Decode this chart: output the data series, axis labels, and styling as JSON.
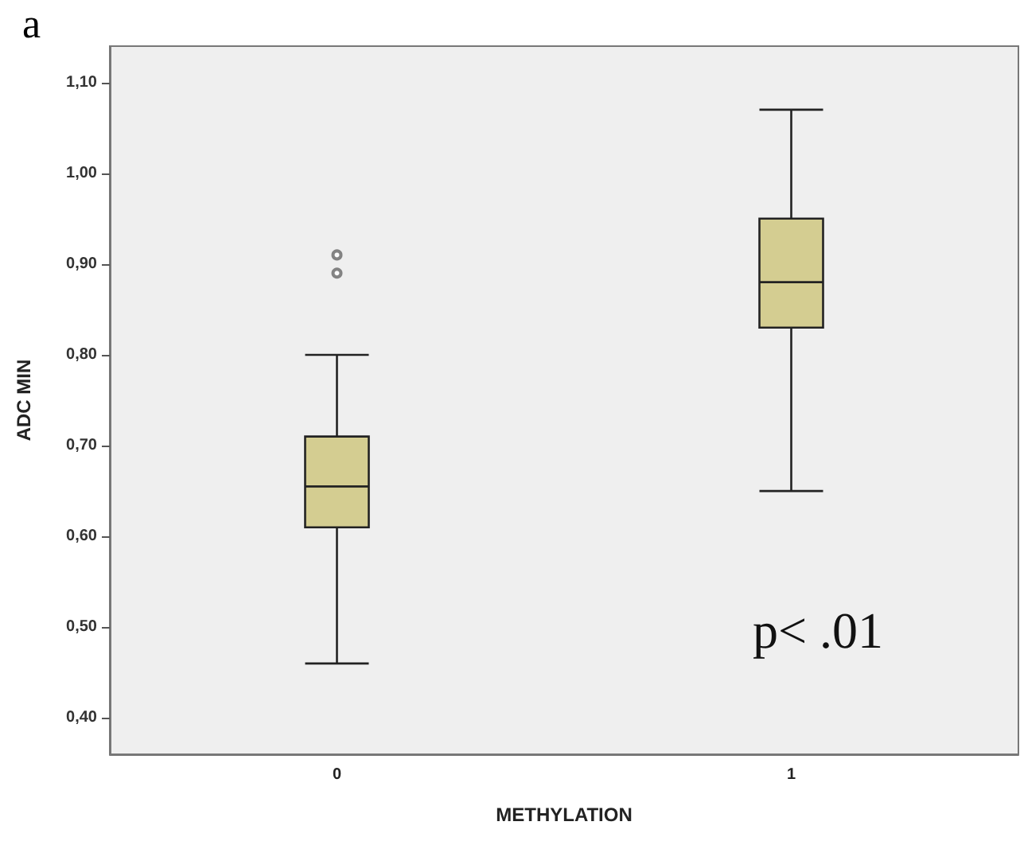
{
  "chart_data": {
    "type": "box",
    "xlabel": "METHYLATION",
    "ylabel": "ADC MIN",
    "categories": [
      "0",
      "1"
    ],
    "boxes": [
      {
        "low": 0.46,
        "q1": 0.61,
        "median": 0.655,
        "q3": 0.71,
        "high": 0.8,
        "outliers": [
          0.91,
          0.89
        ]
      },
      {
        "low": 0.65,
        "q1": 0.83,
        "median": 0.88,
        "q3": 0.95,
        "high": 1.07
      }
    ],
    "color": "#d4cd91",
    "ylim": [
      0.36,
      1.14
    ],
    "yticks": [
      {
        "value": 0.4,
        "label": "0,40"
      },
      {
        "value": 0.5,
        "label": "0,50"
      },
      {
        "value": 0.6,
        "label": "0,60"
      },
      {
        "value": 0.7,
        "label": "0,70"
      },
      {
        "value": 0.8,
        "label": "0,80"
      },
      {
        "value": 0.9,
        "label": "0,90"
      },
      {
        "value": 1.0,
        "label": "1,00"
      },
      {
        "value": 1.1,
        "label": "1,10"
      }
    ],
    "grid": false,
    "annotations": [
      "a",
      "p< .01"
    ]
  }
}
